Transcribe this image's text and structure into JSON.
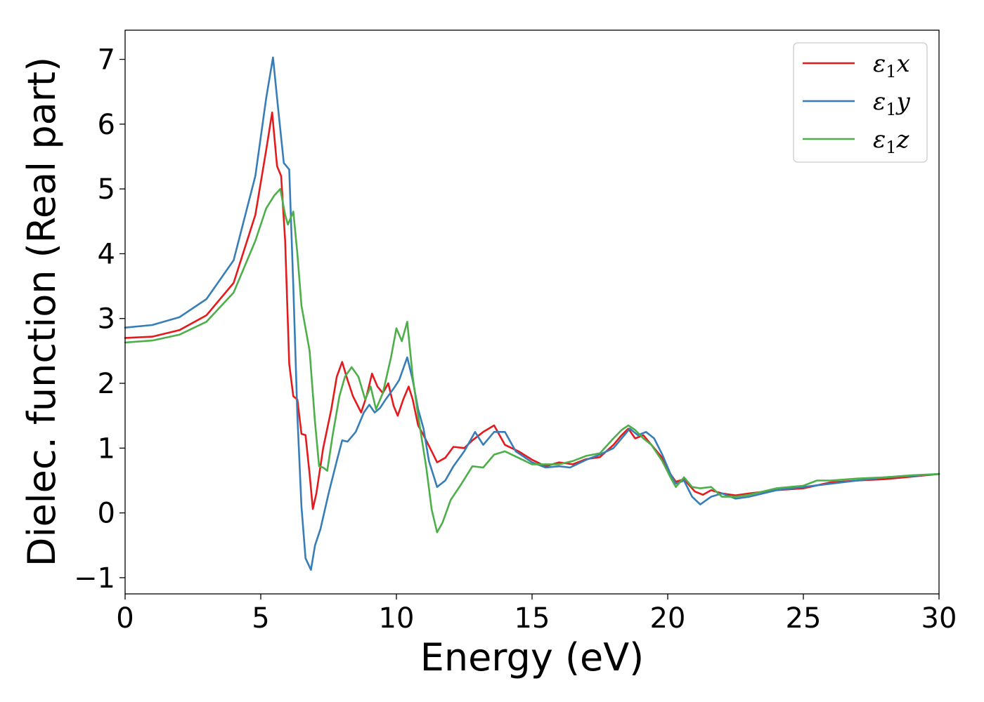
{
  "chart_data": {
    "type": "line",
    "title": "",
    "xlabel": "Energy (eV)",
    "ylabel": "Dielec. function (Real part)",
    "xlim": [
      0,
      30
    ],
    "ylim": [
      -1.25,
      7.45
    ],
    "xticks": [
      0,
      5,
      10,
      15,
      20,
      25,
      30
    ],
    "yticks": [
      -1,
      0,
      1,
      2,
      3,
      4,
      5,
      6,
      7
    ],
    "xtick_labels": [
      "0",
      "5",
      "10",
      "15",
      "20",
      "25",
      "30"
    ],
    "ytick_labels": [
      "−1",
      "0",
      "1",
      "2",
      "3",
      "4",
      "5",
      "6",
      "7"
    ],
    "grid": false,
    "legend_position": "top-right",
    "series": [
      {
        "name": "ε1x",
        "legend_base": "ε",
        "legend_sub": "1",
        "legend_var": "x",
        "color": "#e41a1c",
        "points": [
          [
            0,
            2.7
          ],
          [
            1,
            2.72
          ],
          [
            2,
            2.82
          ],
          [
            3,
            3.05
          ],
          [
            4,
            3.55
          ],
          [
            4.8,
            4.6
          ],
          [
            5.2,
            5.6
          ],
          [
            5.42,
            6.18
          ],
          [
            5.6,
            5.35
          ],
          [
            5.75,
            5.2
          ],
          [
            5.9,
            4.2
          ],
          [
            6.05,
            2.3
          ],
          [
            6.2,
            1.8
          ],
          [
            6.35,
            1.75
          ],
          [
            6.5,
            1.22
          ],
          [
            6.65,
            1.2
          ],
          [
            6.8,
            0.6
          ],
          [
            6.92,
            0.06
          ],
          [
            7.05,
            0.3
          ],
          [
            7.3,
            1.0
          ],
          [
            7.6,
            1.6
          ],
          [
            7.8,
            2.1
          ],
          [
            8.0,
            2.33
          ],
          [
            8.2,
            2.05
          ],
          [
            8.4,
            1.8
          ],
          [
            8.7,
            1.55
          ],
          [
            8.9,
            1.8
          ],
          [
            9.1,
            2.15
          ],
          [
            9.3,
            1.95
          ],
          [
            9.5,
            1.85
          ],
          [
            9.7,
            2.0
          ],
          [
            9.9,
            1.65
          ],
          [
            10.05,
            1.5
          ],
          [
            10.25,
            1.75
          ],
          [
            10.45,
            1.95
          ],
          [
            10.6,
            1.75
          ],
          [
            10.8,
            1.35
          ],
          [
            11.0,
            1.2
          ],
          [
            11.3,
            0.95
          ],
          [
            11.5,
            0.78
          ],
          [
            11.8,
            0.85
          ],
          [
            12.1,
            1.02
          ],
          [
            12.5,
            1.0
          ],
          [
            12.8,
            1.12
          ],
          [
            13.2,
            1.25
          ],
          [
            13.6,
            1.35
          ],
          [
            14.0,
            1.05
          ],
          [
            14.5,
            0.95
          ],
          [
            15.0,
            0.82
          ],
          [
            15.5,
            0.72
          ],
          [
            16.0,
            0.78
          ],
          [
            16.5,
            0.75
          ],
          [
            17.0,
            0.83
          ],
          [
            17.5,
            0.86
          ],
          [
            18.0,
            1.05
          ],
          [
            18.3,
            1.2
          ],
          [
            18.55,
            1.3
          ],
          [
            18.8,
            1.15
          ],
          [
            19.1,
            1.2
          ],
          [
            19.4,
            1.05
          ],
          [
            19.8,
            0.85
          ],
          [
            20.1,
            0.6
          ],
          [
            20.3,
            0.48
          ],
          [
            20.6,
            0.52
          ],
          [
            21.0,
            0.33
          ],
          [
            21.3,
            0.28
          ],
          [
            21.6,
            0.35
          ],
          [
            22.0,
            0.3
          ],
          [
            22.5,
            0.27
          ],
          [
            23.0,
            0.3
          ],
          [
            24.0,
            0.35
          ],
          [
            25.0,
            0.38
          ],
          [
            26.0,
            0.47
          ],
          [
            27.0,
            0.5
          ],
          [
            28.0,
            0.52
          ],
          [
            29.0,
            0.56
          ],
          [
            30.0,
            0.6
          ]
        ]
      },
      {
        "name": "ε1y",
        "legend_base": "ε",
        "legend_sub": "1",
        "legend_var": "y",
        "color": "#377eb8",
        "points": [
          [
            0,
            2.86
          ],
          [
            1,
            2.9
          ],
          [
            2,
            3.02
          ],
          [
            3,
            3.3
          ],
          [
            4,
            3.9
          ],
          [
            4.8,
            5.2
          ],
          [
            5.2,
            6.4
          ],
          [
            5.45,
            7.03
          ],
          [
            5.65,
            6.2
          ],
          [
            5.85,
            5.4
          ],
          [
            6.05,
            5.3
          ],
          [
            6.2,
            3.5
          ],
          [
            6.35,
            1.5
          ],
          [
            6.5,
            0.1
          ],
          [
            6.65,
            -0.7
          ],
          [
            6.85,
            -0.88
          ],
          [
            7.0,
            -0.5
          ],
          [
            7.2,
            -0.25
          ],
          [
            7.5,
            0.3
          ],
          [
            7.8,
            0.8
          ],
          [
            8.0,
            1.12
          ],
          [
            8.2,
            1.1
          ],
          [
            8.5,
            1.25
          ],
          [
            8.8,
            1.55
          ],
          [
            9.0,
            1.67
          ],
          [
            9.2,
            1.55
          ],
          [
            9.4,
            1.62
          ],
          [
            9.6,
            1.75
          ],
          [
            9.9,
            1.92
          ],
          [
            10.1,
            2.05
          ],
          [
            10.4,
            2.4
          ],
          [
            10.6,
            2.05
          ],
          [
            10.8,
            1.6
          ],
          [
            11.0,
            1.3
          ],
          [
            11.2,
            0.8
          ],
          [
            11.5,
            0.4
          ],
          [
            11.8,
            0.5
          ],
          [
            12.1,
            0.72
          ],
          [
            12.5,
            0.95
          ],
          [
            12.9,
            1.25
          ],
          [
            13.2,
            1.05
          ],
          [
            13.6,
            1.25
          ],
          [
            14.0,
            1.25
          ],
          [
            14.4,
            0.95
          ],
          [
            15.0,
            0.78
          ],
          [
            15.5,
            0.7
          ],
          [
            16.0,
            0.72
          ],
          [
            16.4,
            0.7
          ],
          [
            17.0,
            0.82
          ],
          [
            17.5,
            0.9
          ],
          [
            18.0,
            1.0
          ],
          [
            18.3,
            1.15
          ],
          [
            18.6,
            1.3
          ],
          [
            18.9,
            1.2
          ],
          [
            19.2,
            1.25
          ],
          [
            19.5,
            1.15
          ],
          [
            19.8,
            0.9
          ],
          [
            20.1,
            0.6
          ],
          [
            20.3,
            0.45
          ],
          [
            20.6,
            0.5
          ],
          [
            20.9,
            0.25
          ],
          [
            21.2,
            0.13
          ],
          [
            21.6,
            0.25
          ],
          [
            22.0,
            0.3
          ],
          [
            22.5,
            0.22
          ],
          [
            23.0,
            0.25
          ],
          [
            24.0,
            0.35
          ],
          [
            25.0,
            0.4
          ],
          [
            26.0,
            0.45
          ],
          [
            27.0,
            0.5
          ],
          [
            28.0,
            0.55
          ],
          [
            29.0,
            0.57
          ],
          [
            30.0,
            0.6
          ]
        ]
      },
      {
        "name": "ε1z",
        "legend_base": "ε",
        "legend_sub": "1",
        "legend_var": "z",
        "color": "#4daf4a",
        "points": [
          [
            0,
            2.63
          ],
          [
            1,
            2.66
          ],
          [
            2,
            2.75
          ],
          [
            3,
            2.95
          ],
          [
            4,
            3.4
          ],
          [
            4.8,
            4.2
          ],
          [
            5.2,
            4.7
          ],
          [
            5.5,
            4.9
          ],
          [
            5.72,
            5.0
          ],
          [
            5.9,
            4.6
          ],
          [
            6.0,
            4.45
          ],
          [
            6.2,
            4.65
          ],
          [
            6.35,
            4.0
          ],
          [
            6.5,
            3.2
          ],
          [
            6.8,
            2.5
          ],
          [
            7.0,
            1.4
          ],
          [
            7.15,
            0.72
          ],
          [
            7.3,
            0.7
          ],
          [
            7.45,
            0.65
          ],
          [
            7.65,
            1.2
          ],
          [
            7.9,
            1.8
          ],
          [
            8.1,
            2.1
          ],
          [
            8.35,
            2.25
          ],
          [
            8.6,
            2.1
          ],
          [
            8.85,
            1.75
          ],
          [
            9.05,
            1.95
          ],
          [
            9.25,
            1.6
          ],
          [
            9.5,
            1.85
          ],
          [
            9.8,
            2.4
          ],
          [
            10.0,
            2.85
          ],
          [
            10.2,
            2.65
          ],
          [
            10.4,
            2.95
          ],
          [
            10.6,
            2.1
          ],
          [
            10.8,
            1.5
          ],
          [
            11.1,
            0.7
          ],
          [
            11.3,
            0.05
          ],
          [
            11.5,
            -0.3
          ],
          [
            11.7,
            -0.15
          ],
          [
            12.0,
            0.2
          ],
          [
            12.4,
            0.45
          ],
          [
            12.8,
            0.72
          ],
          [
            13.2,
            0.7
          ],
          [
            13.6,
            0.9
          ],
          [
            14.0,
            0.95
          ],
          [
            14.5,
            0.85
          ],
          [
            15.0,
            0.75
          ],
          [
            15.5,
            0.75
          ],
          [
            16.0,
            0.75
          ],
          [
            16.5,
            0.8
          ],
          [
            17.0,
            0.88
          ],
          [
            17.5,
            0.92
          ],
          [
            18.0,
            1.15
          ],
          [
            18.3,
            1.28
          ],
          [
            18.55,
            1.35
          ],
          [
            18.8,
            1.28
          ],
          [
            19.1,
            1.15
          ],
          [
            19.4,
            1.05
          ],
          [
            19.8,
            0.8
          ],
          [
            20.1,
            0.55
          ],
          [
            20.3,
            0.4
          ],
          [
            20.6,
            0.55
          ],
          [
            20.9,
            0.4
          ],
          [
            21.2,
            0.38
          ],
          [
            21.6,
            0.4
          ],
          [
            22.0,
            0.25
          ],
          [
            22.5,
            0.25
          ],
          [
            23.0,
            0.28
          ],
          [
            24.0,
            0.38
          ],
          [
            25.0,
            0.42
          ],
          [
            25.5,
            0.5
          ],
          [
            26.0,
            0.5
          ],
          [
            27.0,
            0.53
          ],
          [
            28.0,
            0.55
          ],
          [
            29.0,
            0.58
          ],
          [
            30.0,
            0.6
          ]
        ]
      }
    ]
  }
}
